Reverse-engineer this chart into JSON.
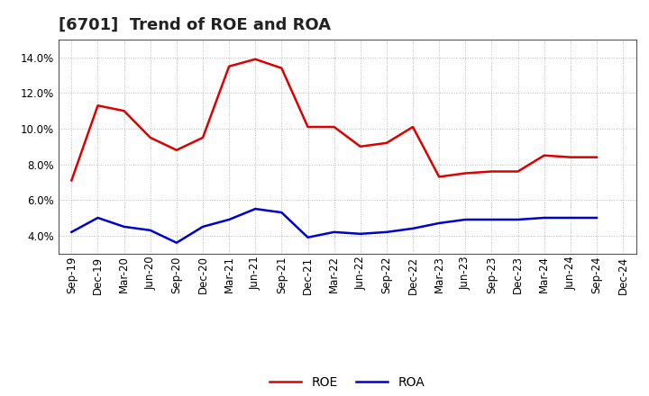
{
  "title": "[6701]  Trend of ROE and ROA",
  "x_labels": [
    "Sep-19",
    "Dec-19",
    "Mar-20",
    "Jun-20",
    "Sep-20",
    "Dec-20",
    "Mar-21",
    "Jun-21",
    "Sep-21",
    "Dec-21",
    "Mar-22",
    "Jun-22",
    "Sep-22",
    "Dec-22",
    "Mar-23",
    "Jun-23",
    "Sep-23",
    "Dec-23",
    "Mar-24",
    "Jun-24",
    "Sep-24",
    "Dec-24"
  ],
  "roe": [
    7.1,
    11.3,
    11.0,
    9.5,
    8.8,
    9.5,
    13.5,
    13.9,
    13.4,
    10.1,
    10.1,
    9.0,
    9.2,
    10.1,
    7.3,
    7.5,
    7.6,
    7.6,
    8.5,
    8.4,
    8.4,
    null
  ],
  "roa": [
    4.2,
    5.0,
    4.5,
    4.3,
    3.6,
    4.5,
    4.9,
    5.5,
    5.3,
    3.9,
    4.2,
    4.1,
    4.2,
    4.4,
    4.7,
    4.9,
    4.9,
    4.9,
    5.0,
    5.0,
    5.0,
    null
  ],
  "roe_color": "#dd0000",
  "roa_color": "#0000cc",
  "ylim": [
    3.0,
    15.0
  ],
  "yticks": [
    4.0,
    6.0,
    8.0,
    10.0,
    12.0,
    14.0
  ],
  "background_color": "#ffffff",
  "plot_bg_color": "#ffffff",
  "grid_color": "#bbbbbb",
  "title_fontsize": 13,
  "legend_fontsize": 10,
  "tick_fontsize": 8.5,
  "line_width": 1.8
}
